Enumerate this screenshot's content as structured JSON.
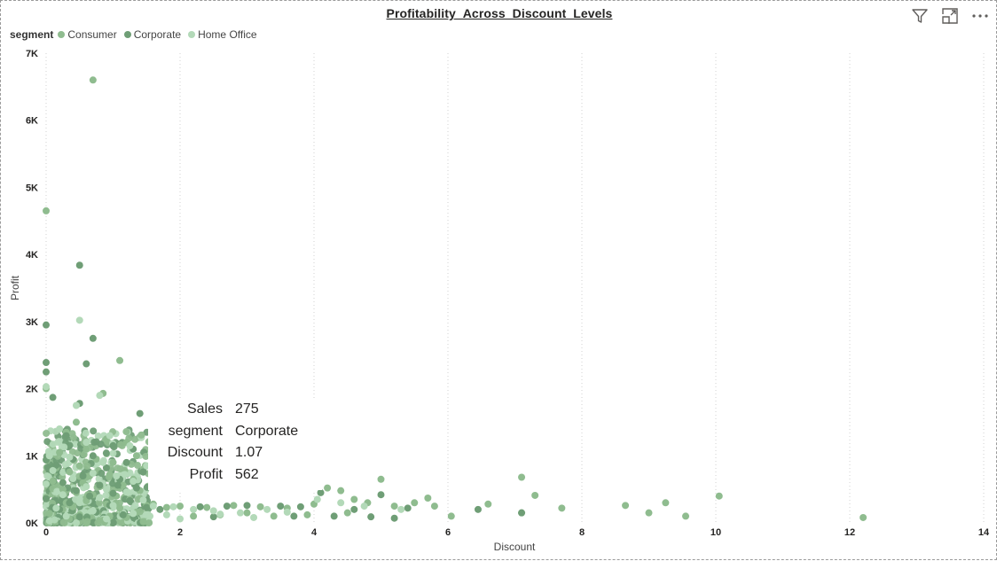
{
  "visual": {
    "title": "Profitability_Across_Discount_Levels",
    "icons": [
      {
        "name": "filter-icon"
      },
      {
        "name": "focus-mode-icon"
      },
      {
        "name": "more-options-icon"
      }
    ]
  },
  "legend": {
    "title": "segment",
    "items": [
      {
        "label": "Consumer",
        "color": "#8fbc8f"
      },
      {
        "label": "Corporate",
        "color": "#6f9e76"
      },
      {
        "label": "Home Office",
        "color": "#b3d9b8"
      }
    ]
  },
  "tooltip": {
    "rows": [
      {
        "key": "Sales",
        "value": "275"
      },
      {
        "key": "segment",
        "value": "Corporate"
      },
      {
        "key": "Discount",
        "value": "1.07"
      },
      {
        "key": "Profit",
        "value": "562"
      }
    ]
  },
  "chart_data": {
    "type": "scatter",
    "title": "Profitability_Across_Discount_Levels",
    "xlabel": "Discount",
    "ylabel": "Profit",
    "xlim": [
      0,
      14
    ],
    "ylim": [
      0,
      7000
    ],
    "x_ticks": [
      0,
      2,
      4,
      6,
      8,
      10,
      12,
      14
    ],
    "x_tick_labels": [
      "0",
      "2",
      "4",
      "6",
      "8",
      "10",
      "12",
      "14"
    ],
    "y_ticks": [
      0,
      1000,
      2000,
      3000,
      4000,
      5000,
      6000,
      7000
    ],
    "y_tick_labels": [
      "0K",
      "1K",
      "2K",
      "3K",
      "4K",
      "5K",
      "6K",
      "7K"
    ],
    "grid": "vertical dotted",
    "legend_position": "top-left",
    "series": [
      {
        "name": "Consumer",
        "color": "#8fbc8f",
        "points": [
          [
            0.7,
            6600
          ],
          [
            0.0,
            4650
          ],
          [
            1.1,
            2420
          ],
          [
            0.85,
            1930
          ],
          [
            0.0,
            2000
          ],
          [
            0.45,
            1500
          ],
          [
            0.3,
            1350
          ],
          [
            0.9,
            1250
          ],
          [
            1.2,
            1200
          ],
          [
            0.6,
            1100
          ],
          [
            0.2,
            1050
          ],
          [
            1.35,
            1000
          ],
          [
            0.75,
            950
          ],
          [
            1.0,
            900
          ],
          [
            0.5,
            850
          ],
          [
            0.15,
            820
          ],
          [
            1.45,
            800
          ],
          [
            0.35,
            760
          ],
          [
            0.95,
            720
          ],
          [
            0.65,
            700
          ],
          [
            1.3,
            650
          ],
          [
            0.1,
            620
          ],
          [
            0.55,
            600
          ],
          [
            1.15,
            560
          ],
          [
            0.8,
            540
          ],
          [
            0.25,
            500
          ],
          [
            1.4,
            480
          ],
          [
            0.45,
            450
          ],
          [
            0.7,
            420
          ],
          [
            1.05,
            400
          ],
          [
            0.0,
            380
          ],
          [
            1.25,
            350
          ],
          [
            0.6,
            330
          ],
          [
            0.3,
            300
          ],
          [
            0.9,
            280
          ],
          [
            1.5,
            260
          ],
          [
            0.4,
            240
          ],
          [
            1.1,
            220
          ],
          [
            0.2,
            200
          ],
          [
            0.75,
            180
          ],
          [
            1.35,
            160
          ],
          [
            0.05,
            140
          ],
          [
            0.5,
            120
          ],
          [
            0.95,
            100
          ],
          [
            1.2,
            80
          ],
          [
            0.35,
            60
          ],
          [
            0.85,
            40
          ],
          [
            1.45,
            20
          ],
          [
            2.0,
            250
          ],
          [
            2.4,
            230
          ],
          [
            2.8,
            260
          ],
          [
            3.2,
            240
          ],
          [
            3.6,
            220
          ],
          [
            4.0,
            280
          ],
          [
            4.2,
            520
          ],
          [
            4.4,
            480
          ],
          [
            4.6,
            350
          ],
          [
            4.8,
            300
          ],
          [
            5.0,
            650
          ],
          [
            5.2,
            250
          ],
          [
            5.5,
            300
          ],
          [
            5.8,
            250
          ],
          [
            6.05,
            100
          ],
          [
            6.6,
            280
          ],
          [
            7.1,
            680
          ],
          [
            7.3,
            410
          ],
          [
            7.1,
            150
          ],
          [
            7.7,
            220
          ],
          [
            8.65,
            260
          ],
          [
            9.0,
            150
          ],
          [
            9.25,
            300
          ],
          [
            9.55,
            100
          ],
          [
            10.05,
            400
          ],
          [
            12.2,
            80
          ],
          [
            3.0,
            150
          ],
          [
            3.9,
            120
          ],
          [
            4.5,
            150
          ],
          [
            5.7,
            370
          ],
          [
            2.2,
            100
          ],
          [
            2.6,
            120
          ],
          [
            3.4,
            100
          ],
          [
            1.6,
            280
          ],
          [
            1.8,
            230
          ]
        ]
      },
      {
        "name": "Corporate",
        "color": "#6f9e76",
        "points": [
          [
            0.0,
            2950
          ],
          [
            0.5,
            3840
          ],
          [
            0.7,
            2750
          ],
          [
            0.6,
            2370
          ],
          [
            0.0,
            2250
          ],
          [
            0.0,
            2390
          ],
          [
            1.4,
            1630
          ],
          [
            0.1,
            1870
          ],
          [
            0.5,
            1780
          ],
          [
            0.3,
            1300
          ],
          [
            1.0,
            1150
          ],
          [
            1.3,
            1100
          ],
          [
            0.7,
            1000
          ],
          [
            0.4,
            950
          ],
          [
            1.2,
            900
          ],
          [
            0.15,
            860
          ],
          [
            0.9,
            820
          ],
          [
            1.45,
            760
          ],
          [
            0.55,
            700
          ],
          [
            1.1,
            650
          ],
          [
            0.25,
            600
          ],
          [
            0.8,
            560
          ],
          [
            1.35,
            520
          ],
          [
            0.45,
            480
          ],
          [
            1.0,
            440
          ],
          [
            0.65,
            400
          ],
          [
            0.0,
            360
          ],
          [
            1.25,
            330
          ],
          [
            0.35,
            300
          ],
          [
            0.95,
            260
          ],
          [
            1.5,
            230
          ],
          [
            0.2,
            200
          ],
          [
            0.75,
            160
          ],
          [
            1.15,
            120
          ],
          [
            0.5,
            90
          ],
          [
            1.07,
            562
          ],
          [
            2.3,
            240
          ],
          [
            2.7,
            250
          ],
          [
            3.0,
            260
          ],
          [
            3.5,
            250
          ],
          [
            3.8,
            240
          ],
          [
            4.1,
            450
          ],
          [
            4.6,
            200
          ],
          [
            5.0,
            420
          ],
          [
            5.4,
            220
          ],
          [
            6.45,
            200
          ],
          [
            7.1,
            150
          ],
          [
            4.3,
            100
          ],
          [
            4.85,
            90
          ],
          [
            5.2,
            70
          ],
          [
            3.7,
            100
          ],
          [
            2.5,
            90
          ],
          [
            1.7,
            200
          ]
        ]
      },
      {
        "name": "Home Office",
        "color": "#b3d9b8",
        "points": [
          [
            0.5,
            3020
          ],
          [
            0.0,
            2030
          ],
          [
            0.8,
            1900
          ],
          [
            0.45,
            1750
          ],
          [
            0.2,
            1400
          ],
          [
            0.95,
            1300
          ],
          [
            0.6,
            1200
          ],
          [
            1.25,
            1150
          ],
          [
            0.05,
            1000
          ],
          [
            0.35,
            980
          ],
          [
            0.85,
            900
          ],
          [
            1.5,
            850
          ],
          [
            0.1,
            780
          ],
          [
            0.7,
            740
          ],
          [
            1.05,
            700
          ],
          [
            0.4,
            660
          ],
          [
            1.3,
            620
          ],
          [
            0.0,
            580
          ],
          [
            0.6,
            540
          ],
          [
            0.9,
            500
          ],
          [
            1.2,
            460
          ],
          [
            0.25,
            420
          ],
          [
            0.8,
            380
          ],
          [
            1.45,
            340
          ],
          [
            0.5,
            300
          ],
          [
            1.0,
            260
          ],
          [
            0.15,
            220
          ],
          [
            0.7,
            180
          ],
          [
            1.3,
            140
          ],
          [
            0.3,
            100
          ],
          [
            0.9,
            60
          ],
          [
            0.05,
            30
          ],
          [
            1.6,
            250
          ],
          [
            1.9,
            240
          ],
          [
            2.2,
            200
          ],
          [
            2.5,
            180
          ],
          [
            2.9,
            150
          ],
          [
            3.3,
            200
          ],
          [
            3.6,
            160
          ],
          [
            4.05,
            350
          ],
          [
            4.4,
            300
          ],
          [
            4.75,
            250
          ],
          [
            5.3,
            200
          ],
          [
            2.6,
            130
          ],
          [
            3.1,
            80
          ],
          [
            1.8,
            120
          ],
          [
            2.0,
            60
          ],
          [
            1.55,
            100
          ]
        ]
      }
    ]
  }
}
